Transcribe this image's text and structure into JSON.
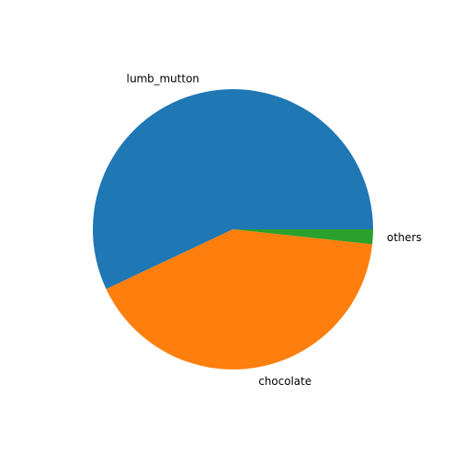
{
  "chart_data": {
    "type": "pie",
    "labels": [
      "lumb_mutton",
      "chocolate",
      "others"
    ],
    "values": [
      57.0,
      41.3,
      1.7
    ],
    "colors": [
      "#1f77b4",
      "#ff7f0e",
      "#2ca02c"
    ],
    "start_angle_deg": 0,
    "direction": "counterclockwise",
    "title": ""
  }
}
